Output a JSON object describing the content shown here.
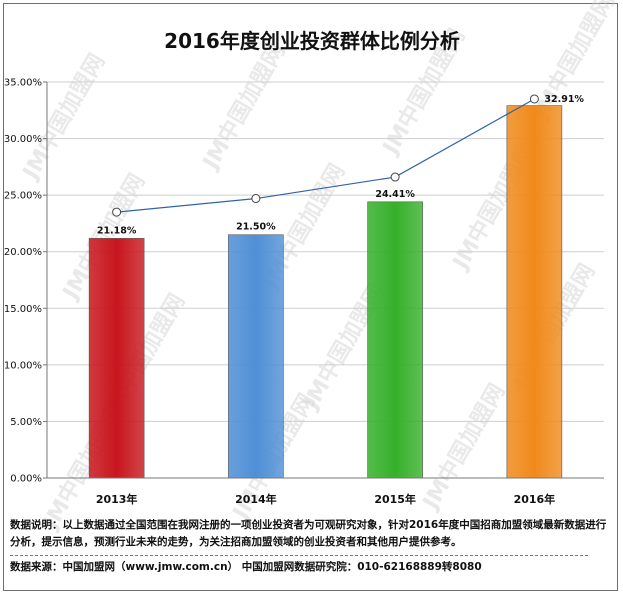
{
  "chart_data": {
    "type": "bar",
    "title": "2016年度创业投资群体比例分析",
    "categories": [
      "2013年",
      "2014年",
      "2015年",
      "2016年"
    ],
    "values": [
      21.18,
      21.5,
      24.41,
      32.91
    ],
    "value_labels": [
      "21.18%",
      "21.50%",
      "24.41%",
      "32.91%"
    ],
    "bar_colors": [
      "#c8161d",
      "#4f8fd6",
      "#36b02a",
      "#f08a1c"
    ],
    "line_values": [
      23.5,
      24.7,
      26.6,
      33.5
    ],
    "line_color": "#2f63a8",
    "ylim": [
      0,
      35
    ],
    "yticks": [
      0,
      5,
      10,
      15,
      20,
      25,
      30,
      35
    ],
    "ytick_labels": [
      "0.00%",
      "5.00%",
      "10.00%",
      "15.00%",
      "20.00%",
      "25.00%",
      "30.00%",
      "35.00%"
    ],
    "grid": true,
    "legend": "none",
    "xlabel": "",
    "ylabel": ""
  },
  "watermark": {
    "text": "JM中国加盟网"
  },
  "notes": {
    "description": "数据说明：以上数据通过全国范围在我网注册的一项创业投资者为可观研究对象，针对2016年度中国招商加盟领域最新数据进行分析，提示信息，预测行业未来的走势，为关注招商加盟领域的创业投资者和其他用户提供参考。",
    "source": "数据来源：中国加盟网（www.jmw.com.cn）    中国加盟网数据研究院：010-62168889转8080"
  }
}
